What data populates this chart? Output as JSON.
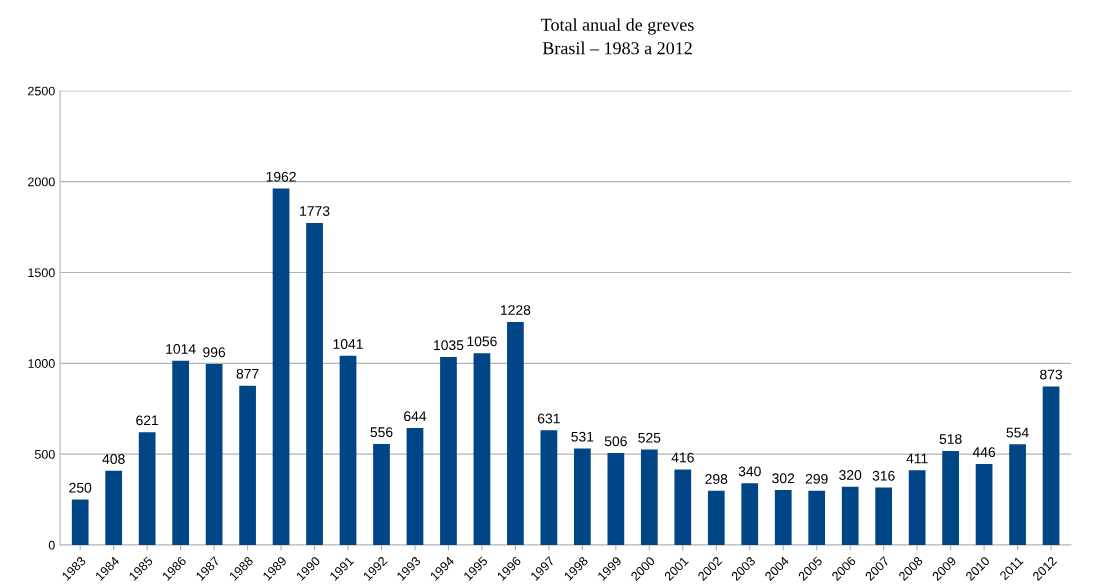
{
  "chart_data": {
    "type": "bar",
    "title": "Total anual de greves",
    "subtitle": "Brasil – 1983 a 2012",
    "categories": [
      "1983",
      "1984",
      "1985",
      "1986",
      "1987",
      "1988",
      "1989",
      "1990",
      "1991",
      "1992",
      "1993",
      "1994",
      "1995",
      "1996",
      "1997",
      "1998",
      "1999",
      "2000",
      "2001",
      "2002",
      "2003",
      "2004",
      "2005",
      "2006",
      "2007",
      "2008",
      "2009",
      "2010",
      "2011",
      "2012"
    ],
    "values": [
      250,
      408,
      621,
      1014,
      996,
      877,
      1962,
      1773,
      1041,
      556,
      644,
      1035,
      1056,
      1228,
      631,
      531,
      506,
      525,
      416,
      298,
      340,
      302,
      299,
      320,
      316,
      411,
      518,
      446,
      554,
      873
    ],
    "color": "#004586",
    "ylim": [
      0,
      2500
    ],
    "yticks": [
      0,
      500,
      1000,
      1500,
      2000,
      2500
    ],
    "grid": "y",
    "data_labels": true,
    "legend": false
  }
}
